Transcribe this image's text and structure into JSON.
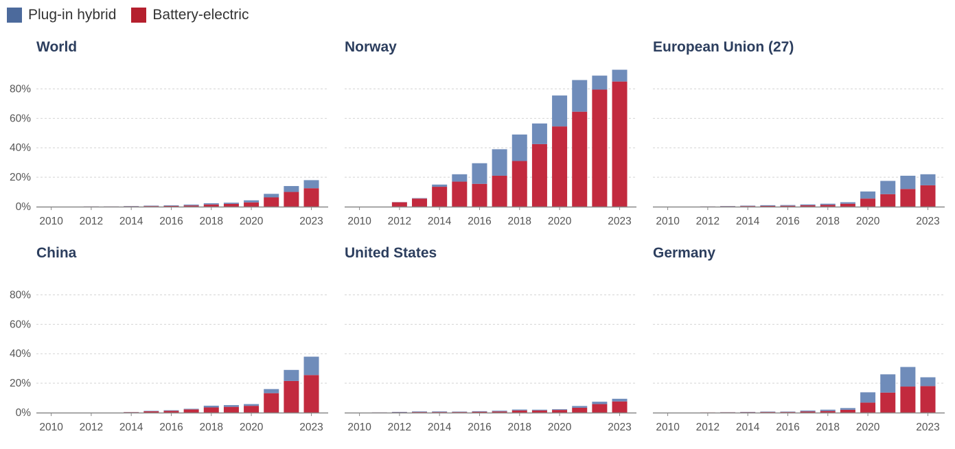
{
  "legend": [
    {
      "label": "Plug-in hybrid",
      "color": "#4c6a9c"
    },
    {
      "label": "Battery-electric",
      "color": "#b5202e"
    }
  ],
  "colors": {
    "phev": "#6f8cba",
    "bev": "#c22a3e",
    "grid": "#d4d4d4",
    "axis": "#888888",
    "tick_text": "#555555"
  },
  "chart_data": [
    {
      "type": "bar",
      "stacked": true,
      "title": "World",
      "x": [
        2010,
        2011,
        2012,
        2013,
        2014,
        2015,
        2016,
        2017,
        2018,
        2019,
        2020,
        2021,
        2022,
        2023
      ],
      "xticks": [
        "2010",
        "2012",
        "2014",
        "2016",
        "2018",
        "2020",
        "2023"
      ],
      "yticks": [
        "0%",
        "20%",
        "40%",
        "60%",
        "80%"
      ],
      "ylim": [
        0,
        90
      ],
      "show_ytick_labels": true,
      "grid": true,
      "series": [
        {
          "name": "Battery-electric",
          "values": [
            0,
            0,
            0.1,
            0.1,
            0.2,
            0.4,
            0.5,
            0.8,
            1.5,
            1.9,
            2.9,
            6.3,
            10,
            12.5
          ]
        },
        {
          "name": "Plug-in hybrid",
          "values": [
            0,
            0,
            0.1,
            0.1,
            0.2,
            0.3,
            0.4,
            0.6,
            0.8,
            0.8,
            1.4,
            2.4,
            4,
            5.5
          ]
        }
      ]
    },
    {
      "type": "bar",
      "stacked": true,
      "title": "Norway",
      "x": [
        2010,
        2011,
        2012,
        2013,
        2014,
        2015,
        2016,
        2017,
        2018,
        2019,
        2020,
        2021,
        2022,
        2023
      ],
      "xticks": [
        "2010",
        "2012",
        "2014",
        "2016",
        "2018",
        "2020",
        "2023"
      ],
      "yticks": [
        "0%",
        "20%",
        "40%",
        "60%",
        "80%"
      ],
      "ylim": [
        0,
        90
      ],
      "show_ytick_labels": false,
      "grid": true,
      "series": [
        {
          "name": "Battery-electric",
          "values": [
            0,
            0,
            3,
            5.5,
            13.5,
            17,
            15.5,
            21,
            31,
            42.5,
            54.5,
            64.5,
            79.5,
            85
          ]
        },
        {
          "name": "Plug-in hybrid",
          "values": [
            0,
            0,
            0.1,
            0.3,
            1.5,
            5,
            14,
            18,
            18,
            14,
            21,
            21.5,
            9.5,
            8
          ]
        }
      ]
    },
    {
      "type": "bar",
      "stacked": true,
      "title": "European Union (27)",
      "x": [
        2010,
        2011,
        2012,
        2013,
        2014,
        2015,
        2016,
        2017,
        2018,
        2019,
        2020,
        2021,
        2022,
        2023
      ],
      "xticks": [
        "2010",
        "2012",
        "2014",
        "2016",
        "2018",
        "2020",
        "2023"
      ],
      "yticks": [
        "0%",
        "20%",
        "40%",
        "60%",
        "80%"
      ],
      "ylim": [
        0,
        90
      ],
      "show_ytick_labels": false,
      "grid": true,
      "series": [
        {
          "name": "Battery-electric",
          "values": [
            0,
            0,
            0.1,
            0.2,
            0.4,
            0.5,
            0.6,
            0.9,
            1.2,
            2,
            5.5,
            8.5,
            12,
            14.5
          ]
        },
        {
          "name": "Plug-in hybrid",
          "values": [
            0,
            0,
            0.1,
            0.2,
            0.3,
            0.5,
            0.5,
            0.6,
            0.8,
            1,
            4.8,
            9,
            9,
            7.5
          ]
        }
      ]
    },
    {
      "type": "bar",
      "stacked": true,
      "title": "China",
      "x": [
        2010,
        2011,
        2012,
        2013,
        2014,
        2015,
        2016,
        2017,
        2018,
        2019,
        2020,
        2021,
        2022,
        2023
      ],
      "xticks": [
        "2010",
        "2012",
        "2014",
        "2016",
        "2018",
        "2020",
        "2023"
      ],
      "yticks": [
        "0%",
        "20%",
        "40%",
        "60%",
        "80%"
      ],
      "ylim": [
        0,
        90
      ],
      "show_ytick_labels": true,
      "grid": true,
      "series": [
        {
          "name": "Battery-electric",
          "values": [
            0,
            0,
            0,
            0,
            0.3,
            0.9,
            1.2,
            2.2,
            3.5,
            3.9,
            4.6,
            13.2,
            21.5,
            25.5
          ]
        },
        {
          "name": "Plug-in hybrid",
          "values": [
            0,
            0,
            0,
            0,
            0.1,
            0.3,
            0.4,
            0.4,
            1.2,
            1.2,
            1.2,
            2.8,
            7.5,
            12.5
          ]
        }
      ]
    },
    {
      "type": "bar",
      "stacked": true,
      "title": "United States",
      "x": [
        2010,
        2011,
        2012,
        2013,
        2014,
        2015,
        2016,
        2017,
        2018,
        2019,
        2020,
        2021,
        2022,
        2023
      ],
      "xticks": [
        "2010",
        "2012",
        "2014",
        "2016",
        "2018",
        "2020",
        "2023"
      ],
      "yticks": [
        "0%",
        "20%",
        "40%",
        "60%",
        "80%"
      ],
      "ylim": [
        0,
        90
      ],
      "show_ytick_labels": false,
      "grid": true,
      "series": [
        {
          "name": "Battery-electric",
          "values": [
            0,
            0.1,
            0.2,
            0.4,
            0.4,
            0.4,
            0.6,
            0.8,
            1.5,
            1.5,
            1.8,
            3.3,
            5.8,
            7.6
          ]
        },
        {
          "name": "Plug-in hybrid",
          "values": [
            0,
            0.1,
            0.3,
            0.4,
            0.4,
            0.3,
            0.4,
            0.5,
            0.6,
            0.5,
            0.5,
            1.2,
            1.6,
            1.8
          ]
        }
      ]
    },
    {
      "type": "bar",
      "stacked": true,
      "title": "Germany",
      "x": [
        2010,
        2011,
        2012,
        2013,
        2014,
        2015,
        2016,
        2017,
        2018,
        2019,
        2020,
        2021,
        2022,
        2023
      ],
      "xticks": [
        "2010",
        "2012",
        "2014",
        "2016",
        "2018",
        "2020",
        "2023"
      ],
      "yticks": [
        "0%",
        "20%",
        "40%",
        "60%",
        "80%"
      ],
      "ylim": [
        0,
        90
      ],
      "show_ytick_labels": false,
      "grid": true,
      "series": [
        {
          "name": "Battery-electric",
          "values": [
            0,
            0,
            0.1,
            0.2,
            0.3,
            0.4,
            0.4,
            0.8,
            1.1,
            1.9,
            6.8,
            13.6,
            17.7,
            18
          ]
        },
        {
          "name": "Plug-in hybrid",
          "values": [
            0,
            0,
            0,
            0.1,
            0.2,
            0.3,
            0.3,
            0.6,
            0.9,
            1.2,
            7,
            12.4,
            13.3,
            6
          ]
        }
      ]
    }
  ]
}
